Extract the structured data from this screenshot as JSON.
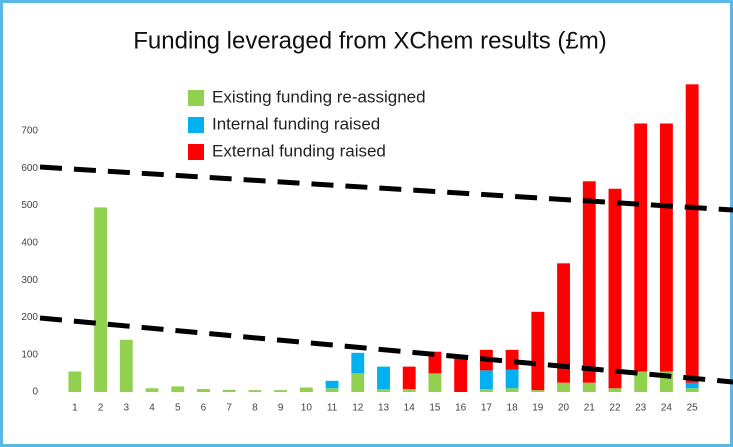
{
  "chart_data": {
    "type": "stacked_bar",
    "title": "Funding leveraged from XChem results (£m)",
    "categories": [
      "1",
      "2",
      "3",
      "4",
      "5",
      "6",
      "7",
      "8",
      "9",
      "10",
      "11",
      "12",
      "13",
      "14",
      "15",
      "16",
      "17",
      "18",
      "19",
      "20",
      "21",
      "22",
      "23",
      "24",
      "25"
    ],
    "series": [
      {
        "name": "Existing funding re-assigned",
        "color": "#92d050",
        "values": [
          55,
          495,
          140,
          10,
          15,
          8,
          6,
          5,
          5,
          12,
          10,
          50,
          8,
          8,
          50,
          0,
          8,
          10,
          5,
          25,
          25,
          10,
          55,
          55,
          10
        ]
      },
      {
        "name": "Internal funding raised",
        "color": "#00b0f0",
        "values": [
          0,
          0,
          0,
          0,
          0,
          0,
          0,
          0,
          0,
          0,
          20,
          55,
          60,
          0,
          0,
          0,
          50,
          50,
          0,
          0,
          0,
          0,
          0,
          0,
          15
        ]
      },
      {
        "name": "External funding raised",
        "color": "#ff0000",
        "values": [
          0,
          0,
          0,
          0,
          0,
          0,
          0,
          0,
          0,
          0,
          0,
          0,
          0,
          60,
          58,
          95,
          55,
          53,
          210,
          320,
          540,
          535,
          665,
          665,
          800
        ]
      }
    ],
    "ylim": [
      0,
      850
    ],
    "yticks": [
      0,
      100,
      200,
      300,
      400,
      500,
      600,
      700
    ],
    "grid": false
  }
}
